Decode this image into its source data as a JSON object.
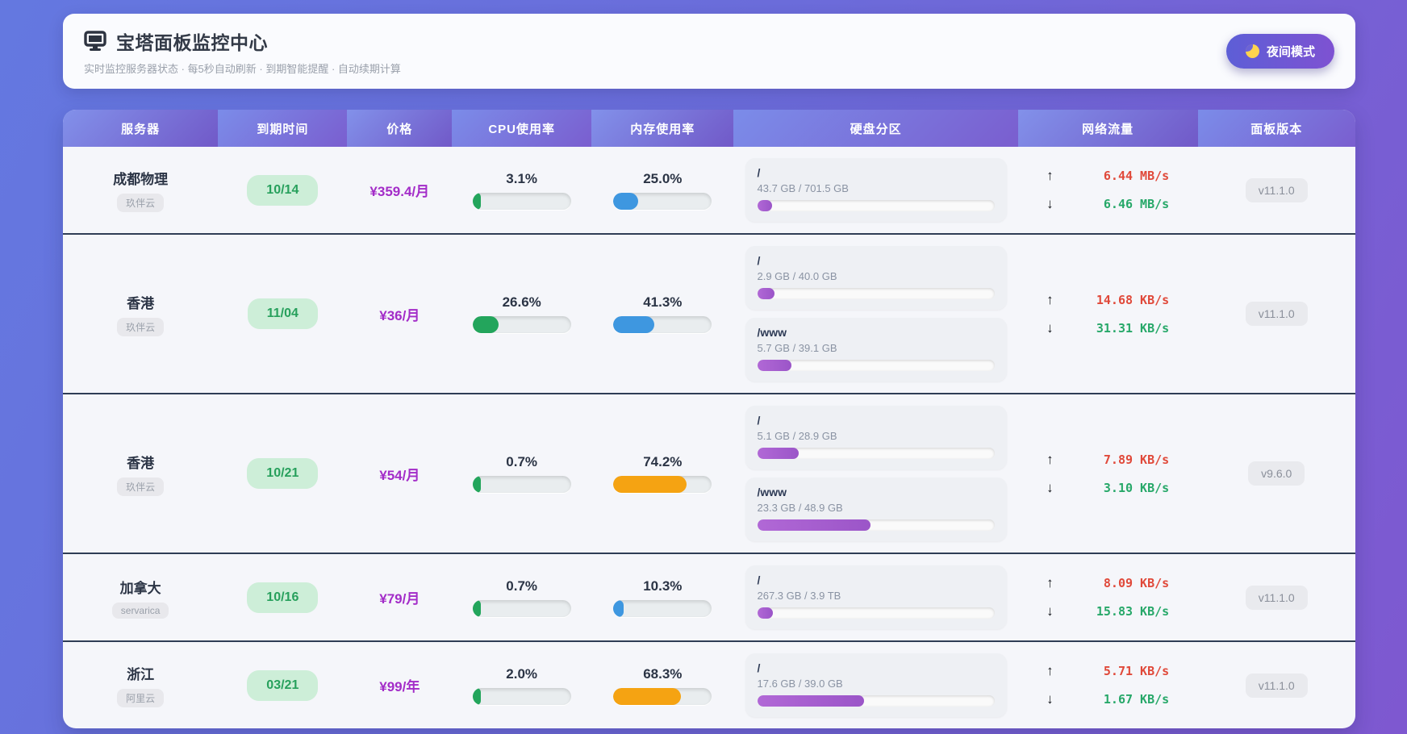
{
  "header": {
    "icon": "monitor",
    "title": "宝塔面板监控中心",
    "subtitle": "实时监控服务器状态 · 每5秒自动刷新 · 到期智能提醒 · 自动续期计算",
    "night_mode_label": "夜间模式",
    "night_mode_icon": "crescent-moon"
  },
  "colors": {
    "cpu_green": "#23a55c",
    "memory_blue": "#3e97e0",
    "memory_orange": "#f5a312",
    "disk_purple": "#a35fce",
    "upload_red": "#e0493a",
    "download_green": "#27a869",
    "price_purple": "#a32cc8",
    "expiry_green": "#27a05c"
  },
  "table": {
    "columns": [
      "服务器",
      "到期时间",
      "价格",
      "CPU使用率",
      "内存使用率",
      "硬盘分区",
      "网络流量",
      "面板版本"
    ],
    "rows": [
      {
        "name": "成都物理",
        "provider": "玖伴云",
        "expiry": "10/14",
        "price": "¥359.4/月",
        "cpu": {
          "label": "3.1%",
          "percent": 3.1,
          "color": "green"
        },
        "memory": {
          "label": "25.0%",
          "percent": 25.0,
          "color": "blue"
        },
        "disks": [
          {
            "mount": "/",
            "usage": "43.7 GB / 701.5 GB",
            "percent": 6.2
          }
        ],
        "network": {
          "up": "6.44 MB/s",
          "down": "6.46 MB/s"
        },
        "version": "v11.1.0"
      },
      {
        "name": "香港",
        "provider": "玖伴云",
        "expiry": "11/04",
        "price": "¥36/月",
        "cpu": {
          "label": "26.6%",
          "percent": 26.6,
          "color": "green"
        },
        "memory": {
          "label": "41.3%",
          "percent": 41.3,
          "color": "blue"
        },
        "disks": [
          {
            "mount": "/",
            "usage": "2.9 GB / 40.0 GB",
            "percent": 7.3
          },
          {
            "mount": "/www",
            "usage": "5.7 GB / 39.1 GB",
            "percent": 14.6
          }
        ],
        "network": {
          "up": "14.68 KB/s",
          "down": "31.31 KB/s"
        },
        "version": "v11.1.0"
      },
      {
        "name": "香港",
        "provider": "玖伴云",
        "expiry": "10/21",
        "price": "¥54/月",
        "cpu": {
          "label": "0.7%",
          "percent": 0.7,
          "color": "green"
        },
        "memory": {
          "label": "74.2%",
          "percent": 74.2,
          "color": "orange"
        },
        "disks": [
          {
            "mount": "/",
            "usage": "5.1 GB / 28.9 GB",
            "percent": 17.6
          },
          {
            "mount": "/www",
            "usage": "23.3 GB / 48.9 GB",
            "percent": 47.6
          }
        ],
        "network": {
          "up": "7.89 KB/s",
          "down": "3.10 KB/s"
        },
        "version": "v9.6.0"
      },
      {
        "name": "加拿大",
        "provider": "servarica",
        "expiry": "10/16",
        "price": "¥79/月",
        "cpu": {
          "label": "0.7%",
          "percent": 0.7,
          "color": "green"
        },
        "memory": {
          "label": "10.3%",
          "percent": 10.3,
          "color": "blue"
        },
        "disks": [
          {
            "mount": "/",
            "usage": "267.3 GB / 3.9 TB",
            "percent": 6.7
          }
        ],
        "network": {
          "up": "8.09 KB/s",
          "down": "15.83 KB/s"
        },
        "version": "v11.1.0"
      },
      {
        "name": "浙江",
        "provider": "阿里云",
        "expiry": "03/21",
        "price": "¥99/年",
        "cpu": {
          "label": "2.0%",
          "percent": 2.0,
          "color": "green"
        },
        "memory": {
          "label": "68.3%",
          "percent": 68.3,
          "color": "orange"
        },
        "disks": [
          {
            "mount": "/",
            "usage": "17.6 GB / 39.0 GB",
            "percent": 45.1
          }
        ],
        "network": {
          "up": "5.71 KB/s",
          "down": "1.67 KB/s"
        },
        "version": "v11.1.0"
      }
    ]
  }
}
